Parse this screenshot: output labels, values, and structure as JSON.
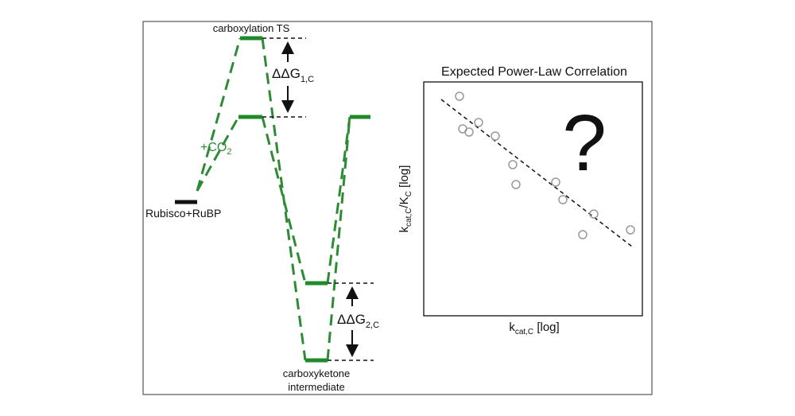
{
  "labels": {
    "transition_state": "carboxylation TS",
    "delta_g1": {
      "main": "ΔΔG",
      "sub": "1,C"
    },
    "co2": {
      "main": "+CO",
      "sub": "2"
    },
    "reactants": "Rubisco+RuBP",
    "delta_g2": {
      "main": "ΔΔG",
      "sub": "2,C"
    },
    "intermediate": [
      "carboxyketone",
      "intermediate"
    ]
  },
  "inset": {
    "title": "Expected Power-Law Correlation",
    "mark": "?",
    "y_label": {
      "k": "k",
      "k_sub": "cat,C",
      "slash": "/K",
      "K_sub": "C",
      "unit": " [log]"
    },
    "x_label": {
      "k": "k",
      "k_sub": "cat,C",
      "unit": " [log]"
    }
  }
}
